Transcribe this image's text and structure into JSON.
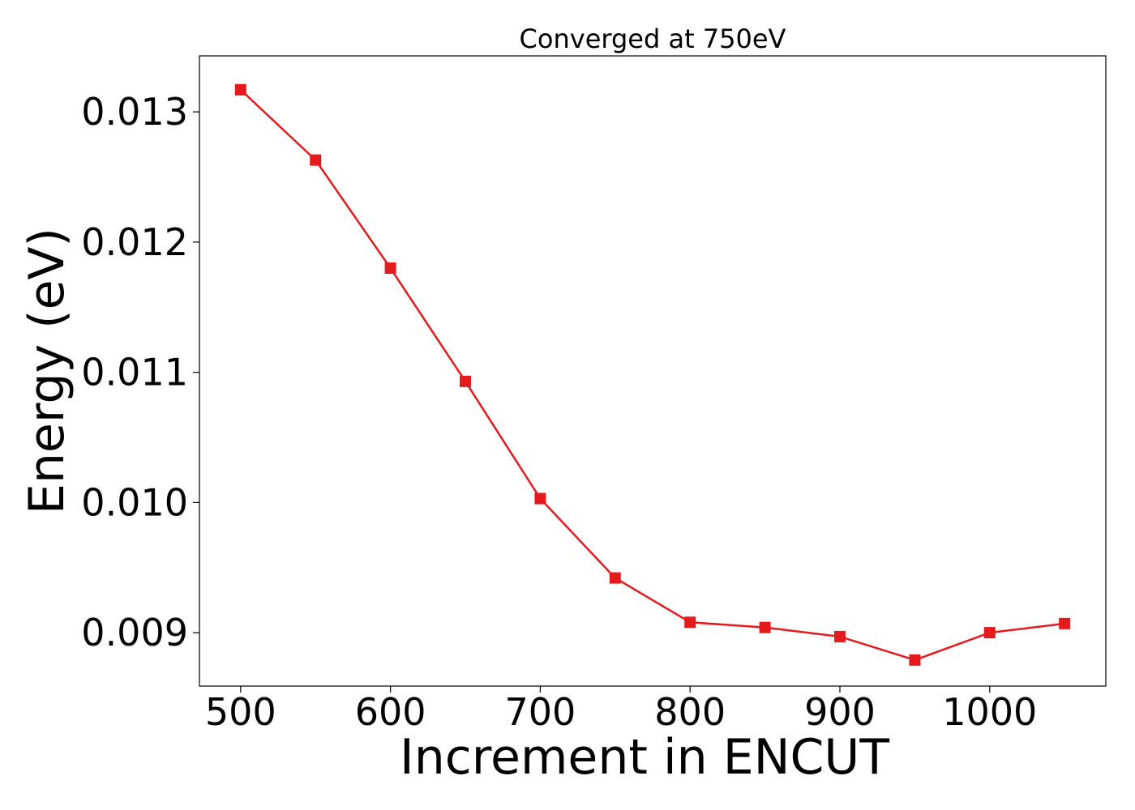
{
  "chart_data": {
    "type": "line",
    "title": "Converged at 750eV",
    "xlabel": "Increment in ENCUT",
    "ylabel": "Energy (eV)",
    "x": [
      500,
      550,
      600,
      650,
      700,
      750,
      800,
      850,
      900,
      950,
      1000,
      1050
    ],
    "series": [
      {
        "values": [
          0.01317,
          0.01263,
          0.0118,
          0.01093,
          0.01003,
          0.00942,
          0.00908,
          0.00904,
          0.00897,
          0.00879,
          0.009,
          0.00907
        ],
        "color": "#e41a1c",
        "marker": "square"
      }
    ],
    "xlim": [
      472.5,
      1077.5
    ],
    "ylim": [
      0.00859,
      0.01343
    ],
    "xticks": [
      500,
      600,
      700,
      800,
      900,
      1000
    ],
    "xtick_labels": [
      "500",
      "600",
      "700",
      "800",
      "900",
      "1000"
    ],
    "yticks": [
      0.009,
      0.01,
      0.011,
      0.012,
      0.013
    ],
    "ytick_labels": [
      "0.009",
      "0.010",
      "0.011",
      "0.012",
      "0.013"
    ],
    "grid": false,
    "legend": "none"
  }
}
